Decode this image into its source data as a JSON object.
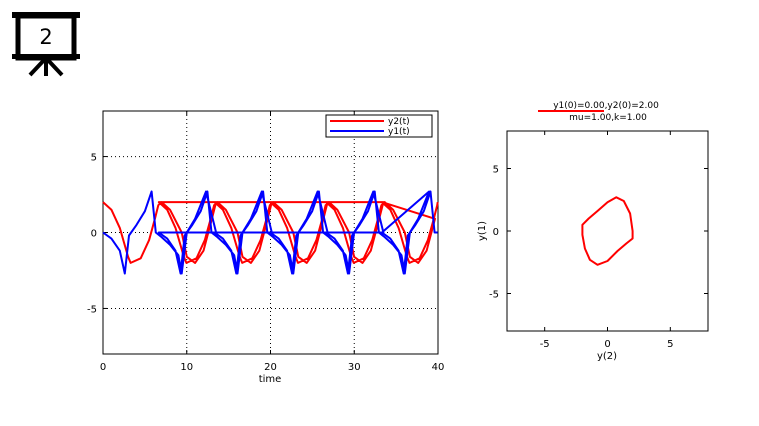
{
  "slide_badge": {
    "number": "2",
    "icon": "presentation-board-icon"
  },
  "chart_data": [
    {
      "type": "line",
      "xlabel": "time",
      "ylabel": "",
      "xlim": [
        0,
        40
      ],
      "ylim": [
        -8,
        8
      ],
      "xticks": [
        "0",
        "10",
        "20",
        "30",
        "40"
      ],
      "yticks": [
        "-5",
        "0",
        "5"
      ],
      "grid": "dotted, at x=10,20,30 and y=-5,0,5",
      "legend": {
        "placement": "top-right",
        "entries": [
          "y2(t)",
          "y1(t)"
        ]
      },
      "series": [
        {
          "name": "y2(t)",
          "color": "#ff0000",
          "x": [
            0,
            1,
            2,
            3,
            3.3,
            4.5,
            5.5,
            6.2,
            6.6,
            7,
            8,
            9.4,
            10,
            11,
            12,
            13,
            13.5
          ],
          "values": [
            2.0,
            1.5,
            0.3,
            -1.6,
            -2.0,
            -1.7,
            -0.5,
            0.9,
            1.8,
            2.0,
            1.5,
            0.0,
            -1.6,
            -2.0,
            -1.2,
            0.9,
            2.0
          ]
        },
        {
          "name": "y1(t)",
          "color": "#0000ff",
          "x": [
            0,
            1,
            2,
            2.6,
            3.1,
            4,
            5,
            5.8,
            6.3,
            7,
            8,
            9,
            9.4,
            10,
            11,
            12.3,
            13.5
          ],
          "values": [
            0.0,
            -0.4,
            -1.2,
            -2.7,
            -0.2,
            0.5,
            1.4,
            2.7,
            0.0,
            -0.3,
            -0.8,
            -1.5,
            -2.7,
            0.0,
            0.9,
            2.7,
            0.0
          ]
        }
      ],
      "period": 6.66
    },
    {
      "type": "line",
      "title_lines": [
        "y1(0)=0.00,y2(0)=2.00",
        "mu=1.00,k=1.00"
      ],
      "xlabel": "y(2)",
      "ylabel": "y(1)",
      "xlim": [
        -8,
        8
      ],
      "ylim": [
        -8,
        8
      ],
      "xticks": [
        "-5",
        "0",
        "5"
      ],
      "yticks": [
        "-5",
        "0",
        "5"
      ],
      "grid": "off",
      "series": [
        {
          "name": "",
          "color": "#ff0000",
          "x": [
            2.0,
            1.8,
            1.3,
            0.7,
            0.0,
            -0.8,
            -1.5,
            -2.0,
            -2.0,
            -1.8,
            -1.4,
            -0.8,
            0.0,
            0.8,
            1.5,
            2.0,
            2.0
          ],
          "y": [
            0.0,
            1.4,
            2.4,
            2.7,
            2.3,
            1.6,
            1.0,
            0.5,
            -0.3,
            -1.4,
            -2.3,
            -2.7,
            -2.4,
            -1.6,
            -1.0,
            -0.6,
            0.0
          ]
        }
      ]
    }
  ]
}
